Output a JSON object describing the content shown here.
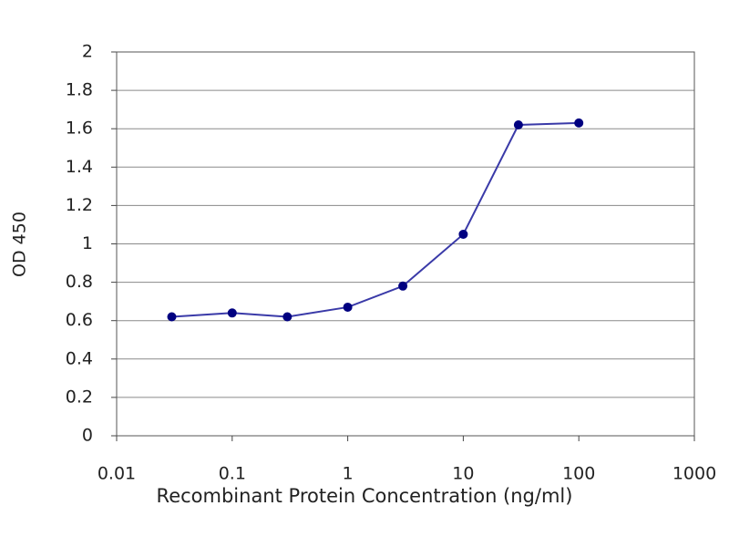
{
  "chart_data": {
    "type": "line",
    "xlabel": "Recombinant Protein Concentration (ng/ml)",
    "ylabel": "OD 450",
    "x": [
      0.03,
      0.1,
      0.3,
      1,
      3,
      10,
      30,
      100
    ],
    "values": [
      0.62,
      0.64,
      0.62,
      0.67,
      0.78,
      1.05,
      1.62,
      1.63
    ],
    "color": "#3a3aa8",
    "marker_color": "#000080",
    "xscale": "log",
    "xlim": [
      0.01,
      1000
    ],
    "xticks": [
      0.01,
      0.1,
      1,
      10,
      100,
      1000
    ],
    "ylim": [
      0,
      2
    ],
    "yticks": [
      0,
      0.2,
      0.4,
      0.6,
      0.8,
      1,
      1.2,
      1.4,
      1.6,
      1.8,
      2
    ],
    "grid": true
  }
}
